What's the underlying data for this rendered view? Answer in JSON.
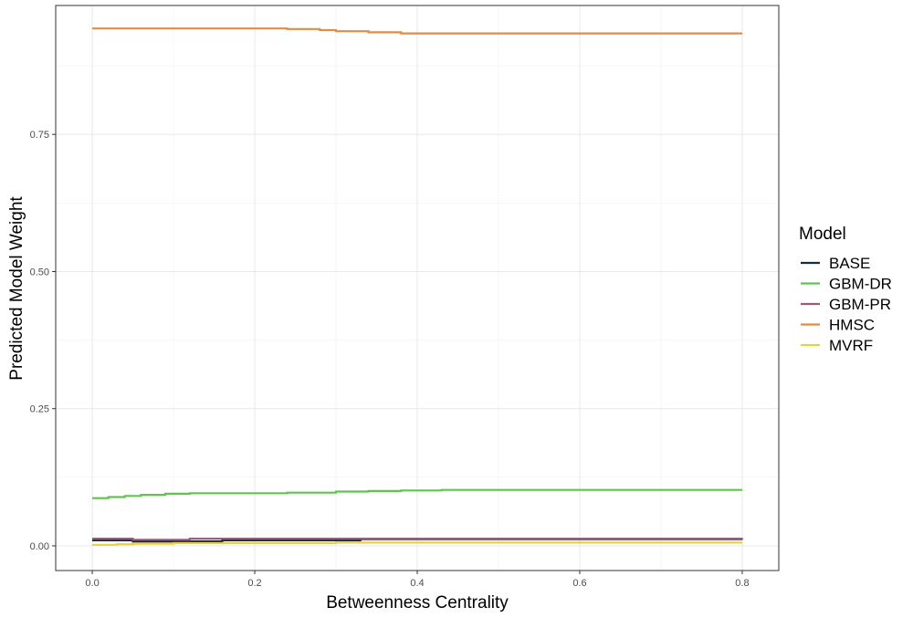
{
  "chart_data": {
    "type": "line",
    "xlabel": "Betweenness Centrality",
    "ylabel": "Predicted Model Weight",
    "xlim": [
      -0.045,
      0.845
    ],
    "ylim": [
      -0.045,
      0.985
    ],
    "x_ticks": [
      0.0,
      0.2,
      0.4,
      0.6,
      0.8
    ],
    "x_tick_labels": [
      "0.0",
      "0.2",
      "0.4",
      "0.6",
      "0.8"
    ],
    "y_ticks": [
      0.0,
      0.25,
      0.5,
      0.75
    ],
    "y_tick_labels": [
      "0.00",
      "0.25",
      "0.50",
      "0.75"
    ],
    "grid": true,
    "legend": {
      "title": "Model",
      "placement": "right"
    },
    "series": [
      {
        "name": "BASE",
        "color": "#132B43",
        "x": [
          0.0,
          0.05,
          0.16,
          0.33,
          0.8
        ],
        "y": [
          0.01,
          0.008,
          0.01,
          0.012,
          0.012
        ]
      },
      {
        "name": "GBM-DR",
        "color": "#5CC74A",
        "x": [
          0.0,
          0.02,
          0.04,
          0.06,
          0.09,
          0.12,
          0.2,
          0.24,
          0.3,
          0.34,
          0.38,
          0.43,
          0.8
        ],
        "y": [
          0.087,
          0.089,
          0.091,
          0.093,
          0.095,
          0.096,
          0.096,
          0.097,
          0.099,
          0.1,
          0.101,
          0.102,
          0.102
        ]
      },
      {
        "name": "GBM-PR",
        "color": "#9E5A7A",
        "x": [
          0.0,
          0.05,
          0.12,
          0.8
        ],
        "y": [
          0.013,
          0.011,
          0.013,
          0.014
        ]
      },
      {
        "name": "HMSC",
        "color": "#E58A45",
        "x": [
          0.0,
          0.2,
          0.24,
          0.28,
          0.3,
          0.34,
          0.38,
          0.8
        ],
        "y": [
          0.943,
          0.943,
          0.942,
          0.94,
          0.938,
          0.936,
          0.934,
          0.934
        ]
      },
      {
        "name": "MVRF",
        "color": "#E8D23A",
        "x": [
          0.0,
          0.03,
          0.05,
          0.1,
          0.3,
          0.4,
          0.8
        ],
        "y": [
          0.002,
          0.003,
          0.004,
          0.005,
          0.006,
          0.006,
          0.006
        ]
      }
    ]
  }
}
